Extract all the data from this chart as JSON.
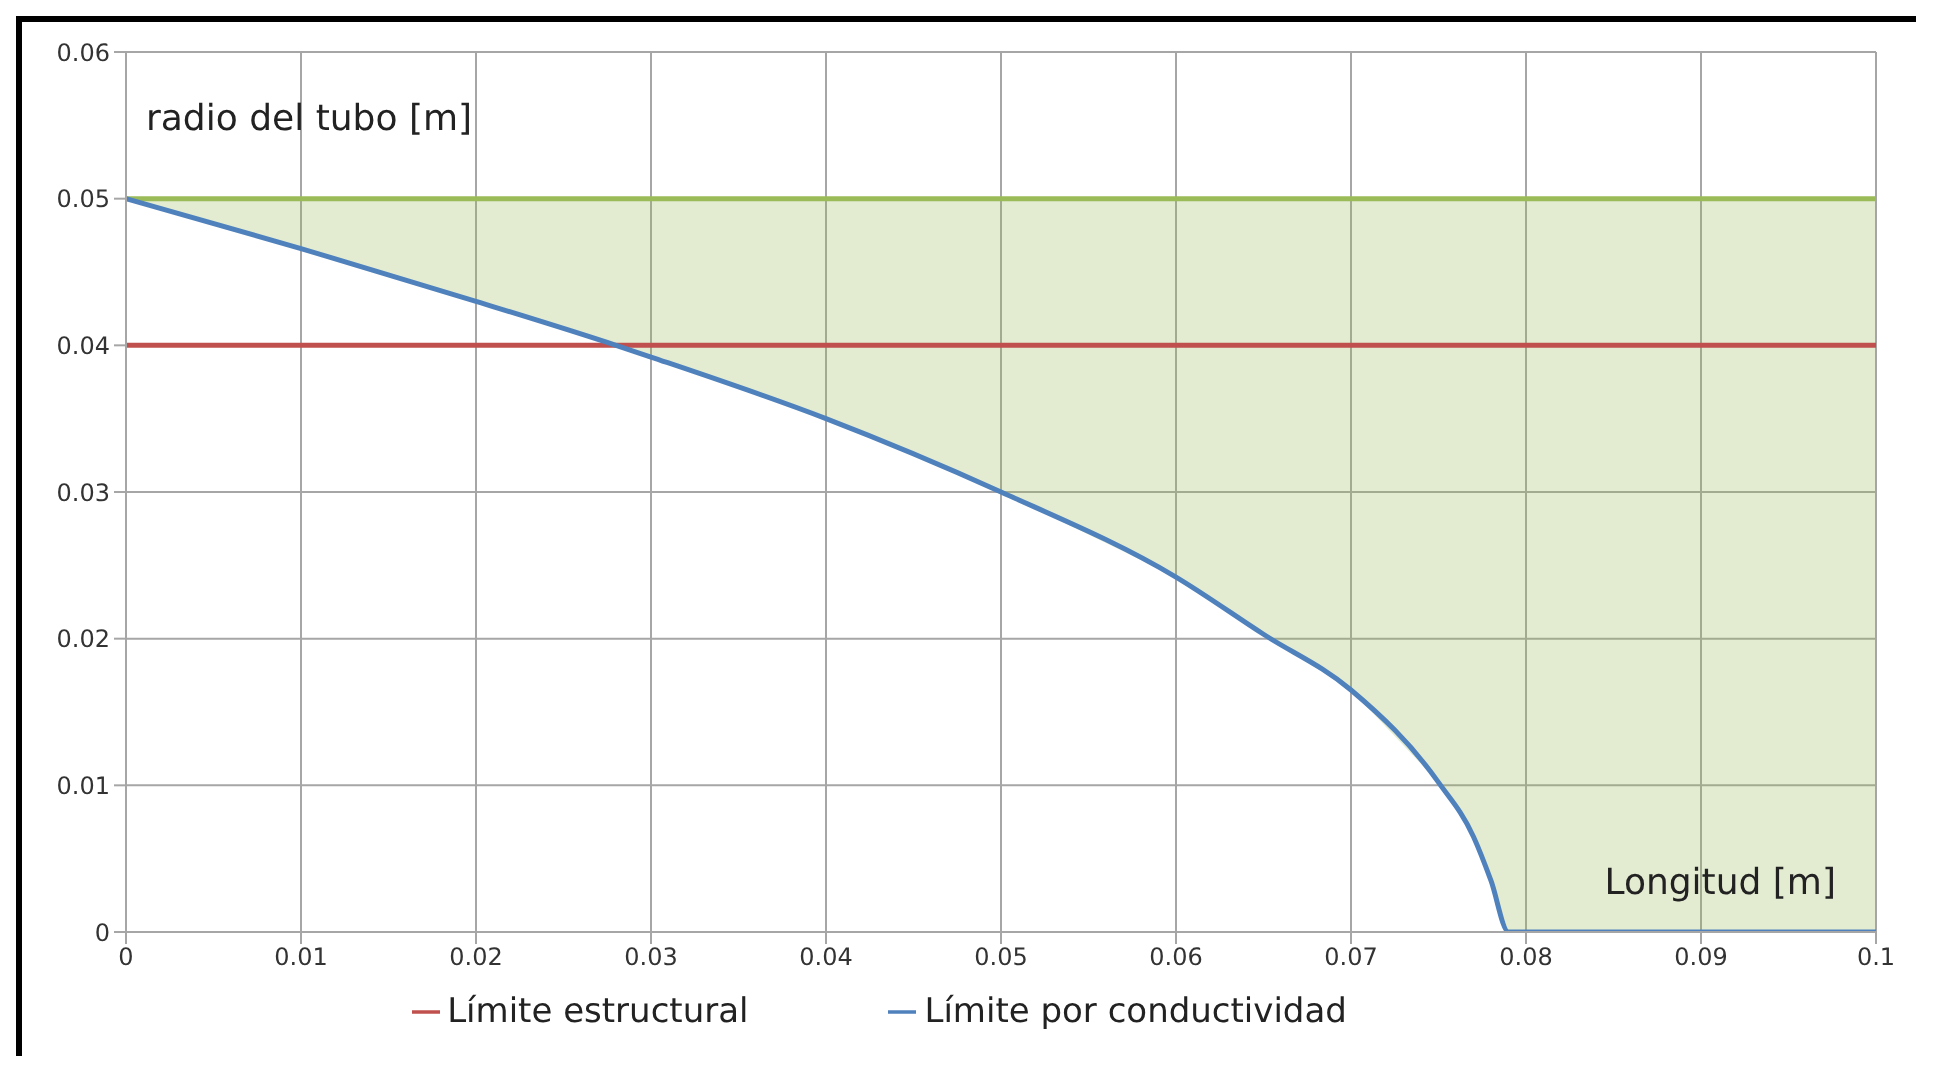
{
  "chart_data": {
    "type": "line",
    "xlabel": "Longitud [m]",
    "ylabel": "radio del tubo [m]",
    "x": [
      0,
      0.01,
      0.02,
      0.028,
      0.03,
      0.04,
      0.05,
      0.06,
      0.065,
      0.07,
      0.075,
      0.077,
      0.078,
      0.079,
      0.08,
      0.09,
      0.1
    ],
    "series": [
      {
        "name": "Límite por conductividad",
        "color": "#4f81bd",
        "values": [
          0.05,
          0.0466,
          0.043,
          0.04,
          0.0392,
          0.035,
          0.03,
          0.0242,
          0.0203,
          0.0165,
          0.0102,
          0.0065,
          0.0035,
          0,
          0,
          0,
          0
        ]
      },
      {
        "name": "Límite estructural",
        "color": "#c0504d",
        "values": [
          0.04,
          0.04,
          0.04,
          0.04,
          0.04,
          0.04,
          0.04,
          0.04,
          0.04,
          0.04,
          0.04,
          0.04,
          0.04,
          0.04,
          0.04,
          0.04,
          0.04
        ]
      },
      {
        "color": "#9bbb59",
        "values": [
          0.05,
          0.05,
          0.05,
          0.05,
          0.05,
          0.05,
          0.05,
          0.05,
          0.05,
          0.05,
          0.05,
          0.05,
          0.05,
          0.05,
          0.05,
          0.05,
          0.05
        ],
        "lower": [
          0.05,
          0.0466,
          0.043,
          0.04,
          0.0392,
          0.035,
          0.03,
          0.0242,
          0.0203,
          0.0165,
          0.0102,
          0.0065,
          0.0035,
          0,
          0,
          0,
          0
        ],
        "upper": [
          0.05,
          0.05,
          0.05,
          0.05,
          0.05,
          0.05,
          0.05,
          0.05,
          0.05,
          0.05,
          0.05,
          0.05,
          0.05,
          0.05,
          0.05,
          0.05,
          0.05
        ]
      }
    ],
    "xlim": [
      0,
      0.1
    ],
    "xticks": [
      0,
      0.01,
      0.02,
      0.03,
      0.04,
      0.05,
      0.06,
      0.07,
      0.08,
      0.09,
      0.1
    ],
    "ylim": [
      0,
      0.06
    ],
    "yticks": [
      0,
      0.01,
      0.02,
      0.03,
      0.04,
      0.05,
      0.06
    ],
    "grid": true,
    "legend": "bottom",
    "marker": "none",
    "line_style": "solid"
  }
}
